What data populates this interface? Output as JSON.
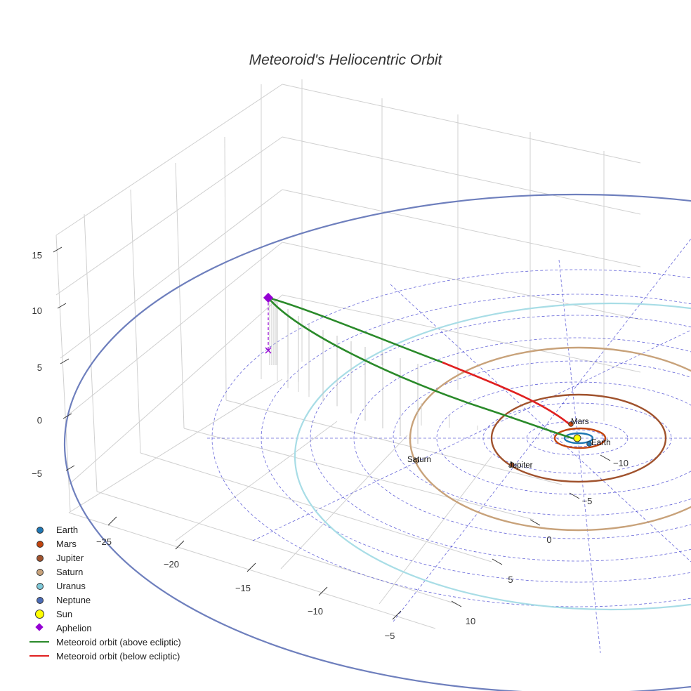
{
  "chart_data": {
    "type": "scatter3d",
    "title": "Meteoroid's Heliocentric Orbit",
    "axes": {
      "x": {
        "ticks": [
          -25,
          -20,
          -15,
          -10,
          -5
        ],
        "label": ""
      },
      "y": {
        "ticks": [
          -10,
          -5,
          0,
          5,
          10
        ],
        "label": ""
      },
      "z": {
        "ticks": [
          -5,
          0,
          5,
          10,
          15
        ],
        "label": ""
      }
    },
    "planets": [
      {
        "name": "Earth",
        "color": "#1f77b4",
        "orbit_color": "#1f77b4",
        "label": "Earth"
      },
      {
        "name": "Mars",
        "color": "#c1440e",
        "orbit_color": "#c1440e",
        "label": "Mars"
      },
      {
        "name": "Jupiter",
        "color": "#a0522d",
        "orbit_color": "#a0522d",
        "label": "Jupiter"
      },
      {
        "name": "Saturn",
        "color": "#c8a27a",
        "orbit_color": "#c8a27a",
        "label": "Saturn"
      },
      {
        "name": "Uranus",
        "color": "#7ec8d8",
        "orbit_color": "#a8dde6",
        "label": ""
      },
      {
        "name": "Neptune",
        "color": "#4b6cb7",
        "orbit_color": "#6e7fbd",
        "label": ""
      }
    ],
    "sun": {
      "name": "Sun",
      "color": "#ffff00"
    },
    "aphelion": {
      "name": "Aphelion",
      "color": "#9400d3",
      "z": 10.9
    },
    "meteoroid_orbit": {
      "above": {
        "name": "Meteoroid orbit (above ecliptic)",
        "color": "#2a8a2a"
      },
      "below": {
        "name": "Meteoroid orbit (below ecliptic)",
        "color": "#e02020"
      }
    },
    "ecliptic_grid": {
      "color": "#3333cc",
      "style": "dashed"
    }
  },
  "legend": [
    {
      "label": "Earth",
      "symbol": "dot",
      "color": "#1f77b4"
    },
    {
      "label": "Mars",
      "symbol": "dot",
      "color": "#c1440e"
    },
    {
      "label": "Jupiter",
      "symbol": "dot",
      "color": "#a0522d"
    },
    {
      "label": "Saturn",
      "symbol": "dot",
      "color": "#c8a27a"
    },
    {
      "label": "Uranus",
      "symbol": "dot",
      "color": "#7ec8d8"
    },
    {
      "label": "Neptune",
      "symbol": "dot",
      "color": "#4b6cb7"
    },
    {
      "label": "Sun",
      "symbol": "sun",
      "color": "#ffff00"
    },
    {
      "label": "Aphelion",
      "symbol": "diamond",
      "color": "#9400d3"
    },
    {
      "label": "Meteoroid orbit (above ecliptic)",
      "symbol": "line",
      "color": "#2a8a2a"
    },
    {
      "label": "Meteoroid orbit (below ecliptic)",
      "symbol": "line",
      "color": "#e02020"
    }
  ]
}
